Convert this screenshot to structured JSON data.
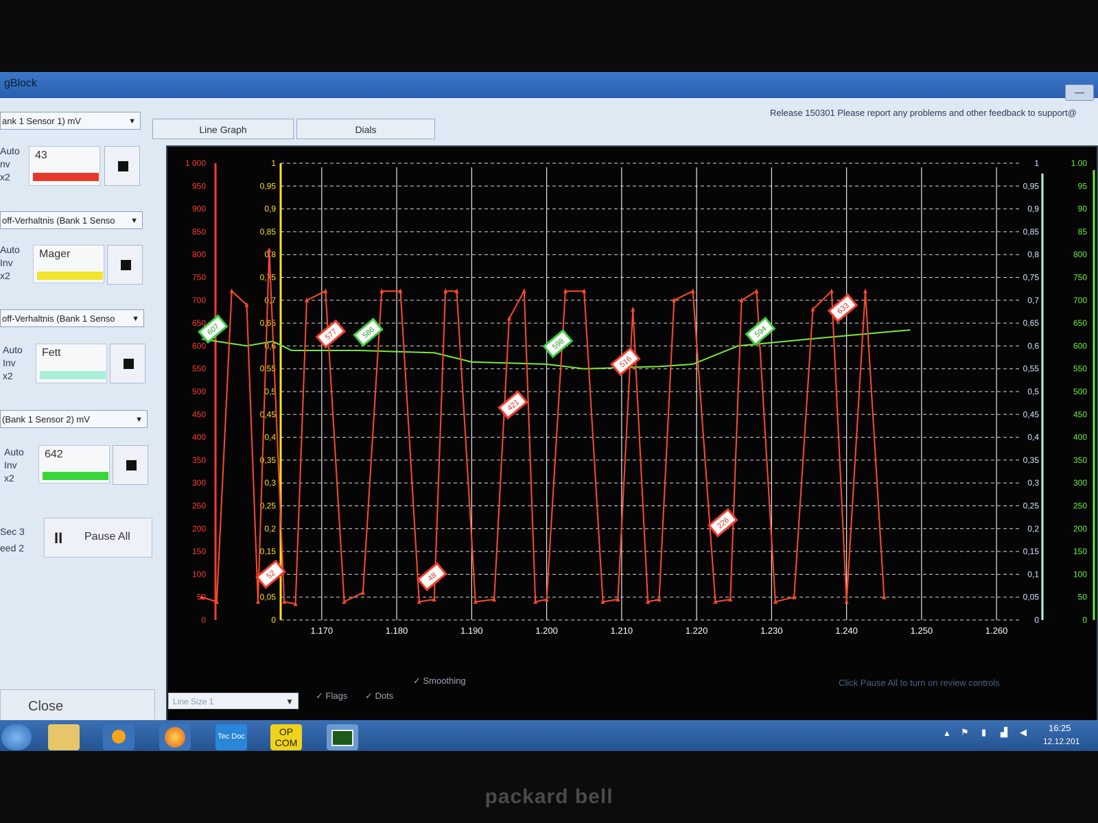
{
  "window": {
    "title": "gBlock",
    "release": "Release 150301 Please report any problems and other feedback to support@"
  },
  "tabs": [
    "Line Graph",
    "Dials"
  ],
  "channels": [
    {
      "select": "ank 1 Sensor 1) mV",
      "options": [
        "Auto",
        "nv",
        "x2"
      ],
      "value": "43",
      "bar_color": "#e53a2a"
    },
    {
      "select": "off-Verhaltnis (Bank 1 Senso",
      "options": [
        "Auto",
        "Inv",
        "x2"
      ],
      "value": "Mager",
      "bar_color": "#f2e52e"
    },
    {
      "select": "off-Verhaltnis (Bank 1 Senso",
      "options": [
        "Auto",
        "Inv",
        "x2"
      ],
      "value": "Fett",
      "bar_color": "#a9efd8"
    },
    {
      "select": "(Bank 1 Sensor 2) mV",
      "options": [
        "Auto",
        "Inv",
        "x2"
      ],
      "value": "642",
      "bar_color": "#3bd63b"
    }
  ],
  "controls": {
    "sec_label": "Sec 3",
    "speed_label": "eed 2",
    "pause_symbol": "II",
    "pause_label": "Pause All",
    "close_label": "Close"
  },
  "bottom": {
    "line_size": "Line Size 1",
    "flags": "Flags",
    "dots": "Dots",
    "smoothing": "Smoothing",
    "hint": "Click Pause All to turn on review controls"
  },
  "taskbar": {
    "time": "16:25",
    "date": "12.12.201",
    "apps": [
      "ie",
      "folder",
      "media",
      "firefox",
      "Tec Doc",
      "OP COM",
      "graph"
    ]
  },
  "brand": "packard bell",
  "colors": {
    "sensor1": "#ff4a2a",
    "sensor2": "#7ee838",
    "axis_mv": "#ff3b30",
    "axis_ratio": "#ffe026",
    "axis_right_ratio": "#b8ffe0",
    "axis_right_mv": "#6cf23c"
  },
  "chart_data": {
    "type": "line",
    "x_ticks": [
      "1.170",
      "1.180",
      "1.190",
      "1.200",
      "1.210",
      "1.220",
      "1.230",
      "1.240",
      "1.250",
      "1.260"
    ],
    "xlim": [
      1.154,
      1.262
    ],
    "left_mv_ticks": [
      "1 000",
      "950",
      "900",
      "850",
      "800",
      "750",
      "700",
      "650",
      "600",
      "550",
      "500",
      "450",
      "400",
      "350",
      "300",
      "250",
      "200",
      "150",
      "100",
      "50",
      "0"
    ],
    "left_ratio_ticks": [
      "1",
      "0,95",
      "0,9",
      "0,85",
      "0,8",
      "0,75",
      "0,7",
      "0,65",
      "0,6",
      "0,55",
      "0,5",
      "0,45",
      "0,4",
      "0,35",
      "0,3",
      "0,25",
      "0,2",
      "0,15",
      "0,1",
      "0,05",
      "0"
    ],
    "right_ratio_ticks": [
      "1",
      "0,95",
      "0,9",
      "0,85",
      "0,8",
      "0,75",
      "0,7",
      "0,65",
      "0,6",
      "0,55",
      "0,5",
      "0,45",
      "0,4",
      "0,35",
      "0,3",
      "0,25",
      "0,2",
      "0,15",
      "0,1",
      "0,05",
      "0"
    ],
    "right_mv_ticks": [
      "1.00",
      "95",
      "90",
      "85",
      "800",
      "750",
      "700",
      "650",
      "600",
      "550",
      "500",
      "450",
      "400",
      "350",
      "300",
      "250",
      "200",
      "150",
      "100",
      "50",
      "0"
    ],
    "ylim": [
      0,
      1000
    ],
    "series": [
      {
        "x": [
          1.154,
          1.156,
          1.158,
          1.16,
          1.1615,
          1.163,
          1.165,
          1.1665,
          1.168,
          1.1705,
          1.173,
          1.1755,
          1.178,
          1.1805,
          1.183,
          1.185,
          1.1865,
          1.188,
          1.1905,
          1.193,
          1.195,
          1.197,
          1.1985,
          1.2,
          1.2025,
          1.205,
          1.2075,
          1.2095,
          1.2115,
          1.2135,
          1.215,
          1.217,
          1.2195,
          1.2225,
          1.2245,
          1.226,
          1.228,
          1.2305,
          1.233,
          1.2355,
          1.238,
          1.24,
          1.2425,
          1.245
        ],
        "y": [
          50,
          40,
          720,
          690,
          40,
          810,
          40,
          35,
          700,
          720,
          40,
          60,
          720,
          720,
          40,
          45,
          720,
          720,
          40,
          45,
          660,
          720,
          40,
          45,
          720,
          720,
          40,
          45,
          680,
          40,
          45,
          700,
          720,
          40,
          45,
          700,
          720,
          40,
          50,
          680,
          720,
          40,
          720,
          50
        ],
        "labels": [
          {
            "x": 1.1555,
            "y": 637,
            "text": "607"
          },
          {
            "x": 1.1632,
            "y": 100,
            "text": "52"
          },
          {
            "x": 1.1712,
            "y": 626,
            "text": "577"
          },
          {
            "x": 1.1762,
            "y": 630,
            "text": "586"
          },
          {
            "x": 1.1847,
            "y": 95,
            "text": "48"
          },
          {
            "x": 1.1955,
            "y": 471,
            "text": "421"
          },
          {
            "x": 1.2015,
            "y": 605,
            "text": "598"
          },
          {
            "x": 1.2105,
            "y": 566,
            "text": "516"
          },
          {
            "x": 1.2235,
            "y": 213,
            "text": "226"
          },
          {
            "x": 1.2285,
            "y": 632,
            "text": "594"
          },
          {
            "x": 1.2395,
            "y": 683,
            "text": "633"
          }
        ]
      },
      {
        "x": [
          1.154,
          1.16,
          1.1635,
          1.166,
          1.175,
          1.185,
          1.19,
          1.2,
          1.205,
          1.215,
          1.2195,
          1.2255,
          1.235,
          1.245,
          1.2485
        ],
        "y": [
          615,
          600,
          610,
          590,
          590,
          585,
          565,
          560,
          550,
          555,
          560,
          600,
          615,
          630,
          635
        ]
      }
    ]
  }
}
